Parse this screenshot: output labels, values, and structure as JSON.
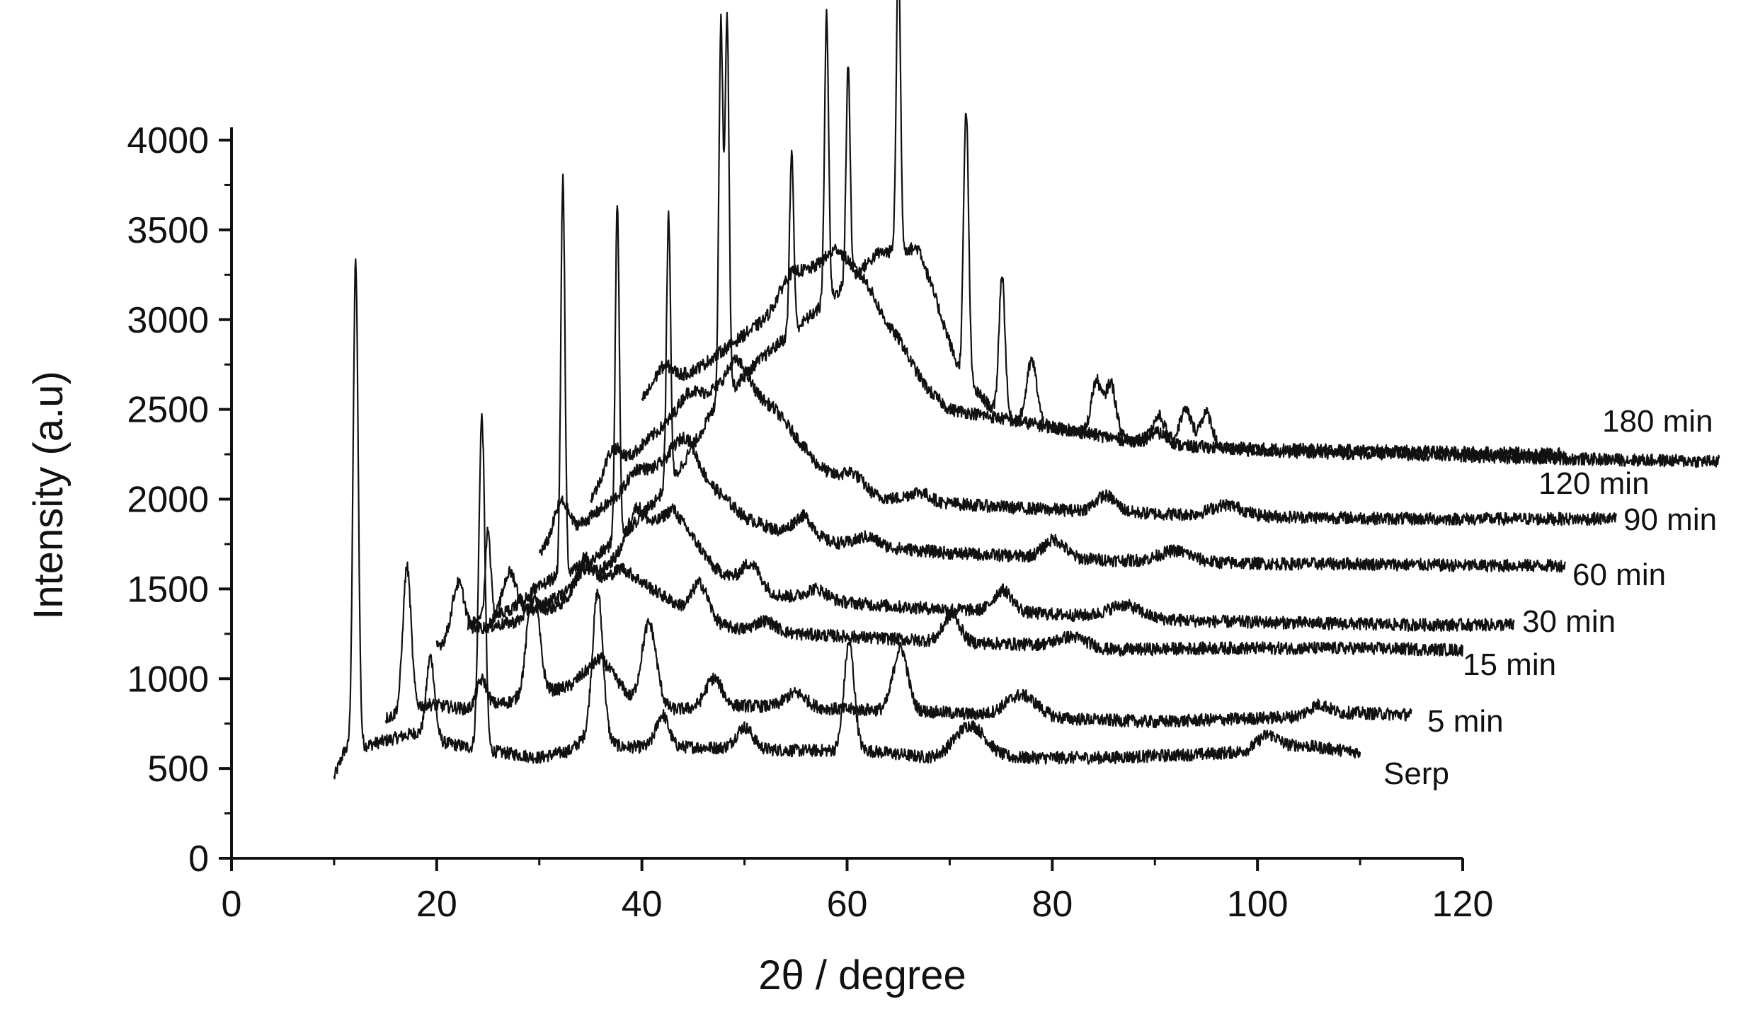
{
  "chart_data": {
    "type": "line",
    "xlabel": "2θ / degree",
    "ylabel": "Intensity (a.u)",
    "xlim": [
      0,
      120
    ],
    "ylim": [
      0,
      4000
    ],
    "xticks": [
      "0",
      "20",
      "40",
      "60",
      "80",
      "100",
      "120"
    ],
    "yticks": [
      "0",
      "500",
      "1000",
      "1500",
      "2000",
      "2500",
      "3000",
      "3500",
      "4000"
    ],
    "grid": false,
    "legend": "labels at right end of each trace",
    "line_color": "#111111",
    "series": [
      {
        "name": "Serp",
        "x_offset": 0,
        "x_range": [
          10,
          110
        ],
        "baseline": [
          [
            10,
            450
          ],
          [
            11,
            600
          ],
          [
            14,
            640
          ],
          [
            18,
            700
          ],
          [
            21,
            640
          ],
          [
            25,
            600
          ],
          [
            30,
            560
          ],
          [
            33,
            600
          ],
          [
            35,
            700
          ],
          [
            38,
            620
          ],
          [
            45,
            620
          ],
          [
            55,
            600
          ],
          [
            62,
            600
          ],
          [
            68,
            560
          ],
          [
            75,
            560
          ],
          [
            85,
            560
          ],
          [
            95,
            580
          ],
          [
            100,
            600
          ],
          [
            104,
            630
          ],
          [
            110,
            590
          ]
        ],
        "peaks": [
          [
            12.1,
            2700,
            0.25
          ],
          [
            19.4,
            450,
            0.4
          ],
          [
            24.4,
            1850,
            0.3
          ],
          [
            35.7,
            800,
            0.5
          ],
          [
            42,
            180,
            0.6
          ],
          [
            50,
            120,
            0.8
          ],
          [
            60.2,
            600,
            0.5
          ],
          [
            72,
            180,
            1.5
          ],
          [
            101,
            80,
            1
          ]
        ]
      },
      {
        "name": "5 min",
        "x_offset": 5,
        "x_range": [
          10,
          110
        ],
        "baseline": [
          [
            10,
            780
          ],
          [
            14,
            860
          ],
          [
            18,
            830
          ],
          [
            22,
            870
          ],
          [
            28,
            960
          ],
          [
            31,
            1120
          ],
          [
            34,
            880
          ],
          [
            38,
            830
          ],
          [
            45,
            850
          ],
          [
            55,
            830
          ],
          [
            62,
            820
          ],
          [
            68,
            800
          ],
          [
            75,
            780
          ],
          [
            85,
            760
          ],
          [
            95,
            780
          ],
          [
            100,
            790
          ],
          [
            104,
            810
          ],
          [
            110,
            800
          ]
        ],
        "peaks": [
          [
            12.1,
            800,
            0.4
          ],
          [
            19.4,
            150,
            0.5
          ],
          [
            24.4,
            600,
            0.6
          ],
          [
            35.7,
            450,
            0.7
          ],
          [
            42,
            160,
            0.8
          ],
          [
            50,
            80,
            1
          ],
          [
            60.2,
            350,
            0.7
          ],
          [
            72,
            120,
            1.5
          ],
          [
            101,
            60,
            1
          ]
        ]
      },
      {
        "name": "15 min",
        "x_offset": 10,
        "x_range": [
          10,
          110
        ],
        "baseline": [
          [
            10,
            1180
          ],
          [
            14,
            1280
          ],
          [
            18,
            1320
          ],
          [
            24,
            1460
          ],
          [
            28,
            1620
          ],
          [
            31,
            1500
          ],
          [
            36,
            1320
          ],
          [
            40,
            1270
          ],
          [
            45,
            1250
          ],
          [
            55,
            1220
          ],
          [
            62,
            1200
          ],
          [
            68,
            1190
          ],
          [
            75,
            1160
          ],
          [
            85,
            1170
          ],
          [
            100,
            1170
          ],
          [
            110,
            1160
          ]
        ],
        "peaks": [
          [
            12.1,
            300,
            0.6
          ],
          [
            19.4,
            80,
            0.6
          ],
          [
            24.4,
            200,
            0.8
          ],
          [
            35.7,
            200,
            0.8
          ],
          [
            42,
            60,
            1
          ],
          [
            60.2,
            150,
            0.8
          ],
          [
            72,
            60,
            1.5
          ]
        ]
      },
      {
        "name": "30 min",
        "x_offset": 15,
        "x_range": [
          10,
          110
        ],
        "baseline": [
          [
            10,
            1300
          ],
          [
            15,
            1400
          ],
          [
            20,
            1550
          ],
          [
            25,
            1800
          ],
          [
            28,
            1950
          ],
          [
            32,
            1620
          ],
          [
            36,
            1480
          ],
          [
            42,
            1440
          ],
          [
            50,
            1400
          ],
          [
            58,
            1380
          ],
          [
            65,
            1360
          ],
          [
            72,
            1340
          ],
          [
            80,
            1320
          ],
          [
            90,
            1310
          ],
          [
            100,
            1300
          ],
          [
            110,
            1300
          ]
        ],
        "peaks": [
          [
            12.1,
            250,
            0.7
          ],
          [
            19.4,
            80,
            0.7
          ],
          [
            24.4,
            180,
            0.8
          ],
          [
            35.7,
            150,
            0.9
          ],
          [
            42,
            60,
            1
          ],
          [
            60.2,
            120,
            0.9
          ],
          [
            72,
            70,
            1.5
          ]
        ]
      },
      {
        "name": "60 min",
        "x_offset": 20,
        "x_range": [
          10,
          110
        ],
        "baseline": [
          [
            10,
            1700
          ],
          [
            15,
            1900
          ],
          [
            20,
            2120
          ],
          [
            23,
            2250
          ],
          [
            26,
            2120
          ],
          [
            30,
            1900
          ],
          [
            35,
            1780
          ],
          [
            42,
            1740
          ],
          [
            50,
            1700
          ],
          [
            58,
            1680
          ],
          [
            66,
            1660
          ],
          [
            74,
            1650
          ],
          [
            82,
            1640
          ],
          [
            90,
            1640
          ],
          [
            100,
            1630
          ],
          [
            110,
            1630
          ]
        ],
        "peaks": [
          [
            12.1,
            200,
            0.7
          ],
          [
            19.4,
            70,
            0.8
          ],
          [
            24.4,
            150,
            0.9
          ],
          [
            35.7,
            130,
            1
          ],
          [
            42,
            50,
            1
          ],
          [
            60.2,
            100,
            1
          ],
          [
            72,
            60,
            1.5
          ]
        ]
      },
      {
        "name": "90 min",
        "x_offset": 25,
        "x_range": [
          10,
          110
        ],
        "baseline": [
          [
            10,
            2000
          ],
          [
            15,
            2300
          ],
          [
            20,
            2560
          ],
          [
            24,
            2660
          ],
          [
            28,
            2500
          ],
          [
            32,
            2200
          ],
          [
            36,
            2020
          ],
          [
            44,
            1980
          ],
          [
            52,
            1950
          ],
          [
            60,
            1930
          ],
          [
            70,
            1910
          ],
          [
            80,
            1900
          ],
          [
            90,
            1890
          ],
          [
            100,
            1890
          ],
          [
            110,
            1890
          ]
        ],
        "peaks": [
          [
            12.1,
            150,
            0.8
          ],
          [
            19.4,
            60,
            0.8
          ],
          [
            24.4,
            120,
            1
          ],
          [
            35.7,
            110,
            1
          ],
          [
            42,
            50,
            1
          ],
          [
            60.2,
            90,
            1
          ],
          [
            72,
            60,
            1.5
          ]
        ]
      },
      {
        "name": "120 min",
        "x_offset": 30,
        "x_range": [
          10,
          100
        ],
        "baseline": [
          [
            10,
            2550
          ],
          [
            16,
            2750
          ],
          [
            22,
            3000
          ],
          [
            26,
            3250
          ],
          [
            29,
            3400
          ],
          [
            32,
            3200
          ],
          [
            36,
            2700
          ],
          [
            40,
            2500
          ],
          [
            50,
            2400
          ],
          [
            60,
            2300
          ],
          [
            70,
            2280
          ],
          [
            80,
            2270
          ],
          [
            90,
            2260
          ],
          [
            100,
            2250
          ]
        ],
        "peaks": [
          [
            12.1,
            120,
            0.9
          ],
          [
            24.4,
            100,
            1
          ],
          [
            35.7,
            90,
            1
          ],
          [
            60.2,
            70,
            1
          ]
        ]
      },
      {
        "name": "180 min",
        "x_offset": 35,
        "x_range": [
          -12,
          110
        ],
        "baseline": [
          [
            -12,
            1300
          ],
          [
            -8,
            1380
          ],
          [
            -4,
            1550
          ],
          [
            0,
            1650
          ],
          [
            4,
            1850
          ],
          [
            8,
            2100
          ],
          [
            12,
            2500
          ],
          [
            16,
            2750
          ],
          [
            20,
            2950
          ],
          [
            24,
            3150
          ],
          [
            28,
            3370
          ],
          [
            32,
            3400
          ],
          [
            36,
            2700
          ],
          [
            40,
            2450
          ],
          [
            50,
            2350
          ],
          [
            60,
            2280
          ],
          [
            70,
            2260
          ],
          [
            80,
            2250
          ],
          [
            90,
            2230
          ],
          [
            100,
            2220
          ],
          [
            110,
            2210
          ]
        ],
        "peaks": [
          [
            -10,
            500,
            0.25
          ],
          [
            -2.7,
            2200,
            0.2
          ],
          [
            2.6,
            1850,
            0.2
          ],
          [
            7.6,
            1500,
            0.2
          ],
          [
            12.7,
            2100,
            0.2
          ],
          [
            13.3,
            2100,
            0.2
          ],
          [
            19.6,
            1000,
            0.2
          ],
          [
            23,
            1600,
            0.2
          ],
          [
            25.1,
            1200,
            0.2
          ],
          [
            30,
            1700,
            0.2
          ],
          [
            36.6,
            1500,
            0.25
          ],
          [
            40.1,
            800,
            0.3
          ],
          [
            43,
            350,
            0.5
          ],
          [
            49.3,
            300,
            0.5
          ],
          [
            50.7,
            300,
            0.5
          ],
          [
            55.4,
            150,
            0.6
          ],
          [
            58,
            200,
            0.6
          ],
          [
            60,
            200,
            0.6
          ]
        ]
      }
    ]
  },
  "labels": {
    "serp": "Serp",
    "m5": "5 min",
    "m15": "15 min",
    "m30": "30 min",
    "m60": "60 min",
    "m90": "90 min",
    "m120": "120 min",
    "m180": "180 min"
  }
}
